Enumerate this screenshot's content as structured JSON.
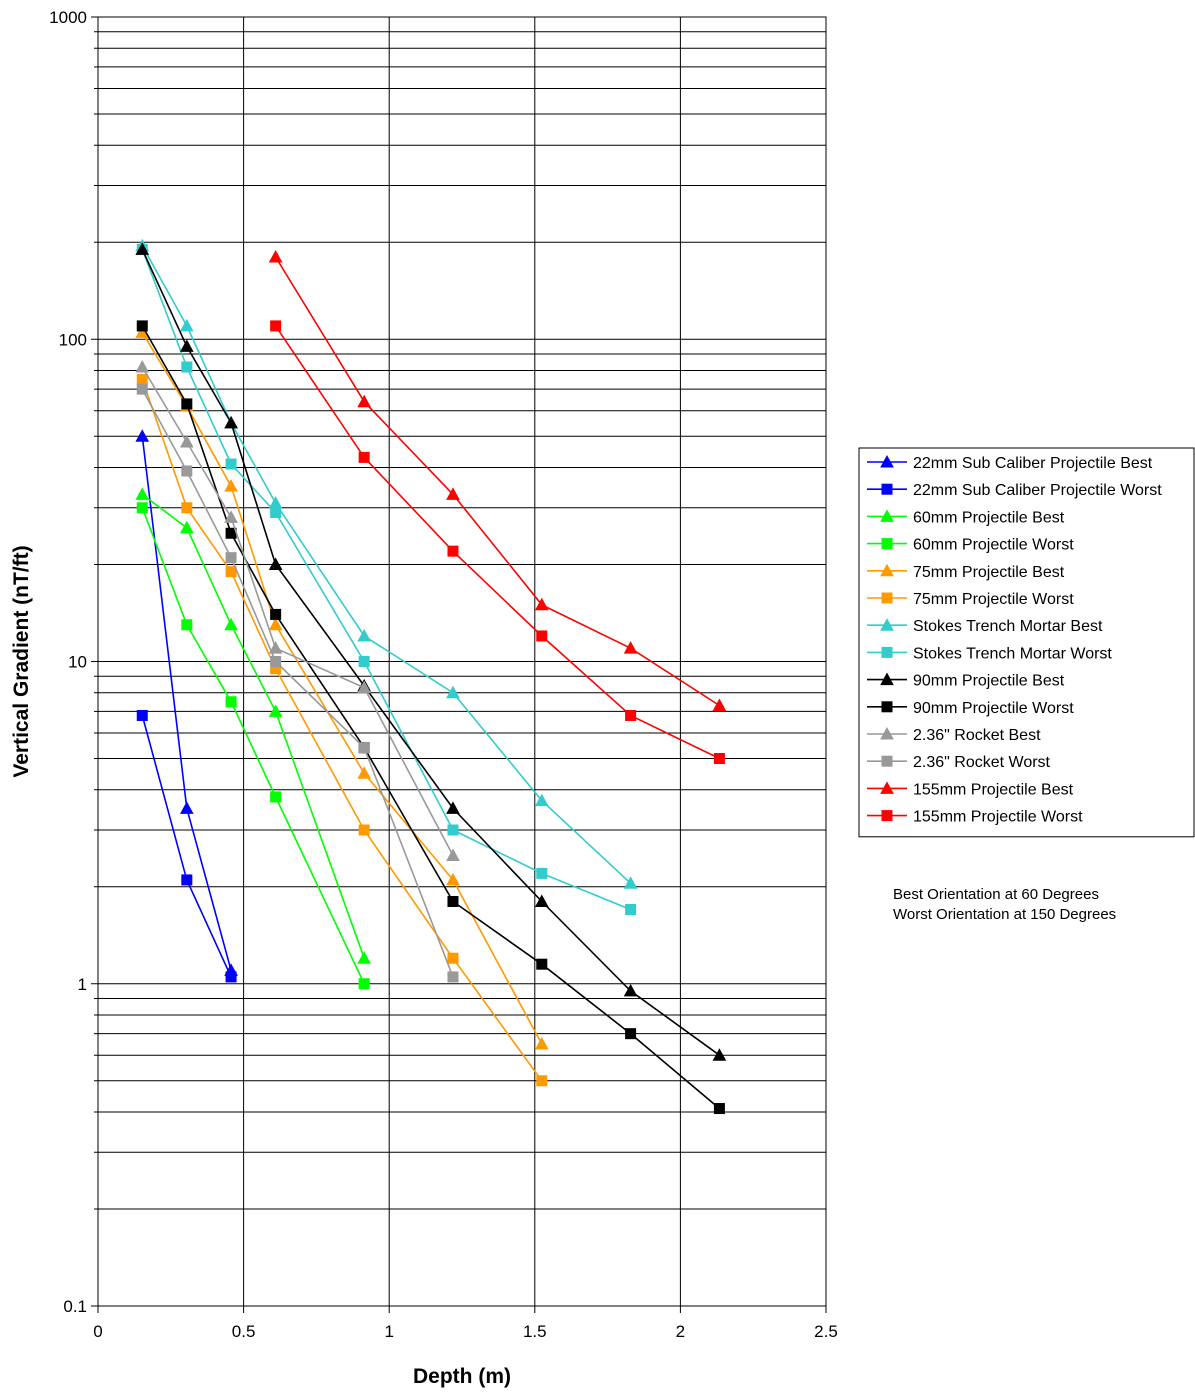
{
  "chart_data": {
    "type": "line",
    "xlabel": "Depth (m)",
    "ylabel": "Vertical Gradient (nT/ft)",
    "xlim": [
      0,
      2.5
    ],
    "ylim": [
      0.1,
      1000
    ],
    "yscale": "log",
    "xticks": [
      "0",
      "0.5",
      "1",
      "1.5",
      "2",
      "2.5"
    ],
    "yticks": [
      "0.1",
      "1",
      "10",
      "100",
      "1000"
    ],
    "grid": true,
    "legend_position": "right",
    "notes": [
      "Best Orientation at 60 Degrees",
      "Worst Orientation at 150 Degrees"
    ],
    "series": [
      {
        "name": "22mm Sub Caliber Projectile Best",
        "color": "#0000ff",
        "marker": "triangle",
        "x": [
          0.152,
          0.305,
          0.457
        ],
        "y": [
          50,
          3.5,
          1.1
        ]
      },
      {
        "name": "22mm Sub Caliber Projectile Worst",
        "color": "#0000ff",
        "marker": "square",
        "x": [
          0.152,
          0.305,
          0.457
        ],
        "y": [
          6.8,
          2.1,
          1.05
        ]
      },
      {
        "name": "60mm Projectile Best",
        "color": "#00ff00",
        "marker": "triangle",
        "x": [
          0.152,
          0.305,
          0.457,
          0.61,
          0.914
        ],
        "y": [
          33,
          26,
          13,
          7,
          1.2
        ]
      },
      {
        "name": "60mm Projectile Worst",
        "color": "#00ff00",
        "marker": "square",
        "x": [
          0.152,
          0.305,
          0.457,
          0.61,
          0.914
        ],
        "y": [
          30,
          13,
          7.5,
          3.8,
          1.0
        ]
      },
      {
        "name": "75mm Projectile Best",
        "color": "#ff9900",
        "marker": "triangle",
        "x": [
          0.152,
          0.305,
          0.457,
          0.61,
          0.914,
          1.219,
          1.524
        ],
        "y": [
          105,
          62,
          35,
          13,
          4.5,
          2.1,
          0.65
        ]
      },
      {
        "name": "75mm Projectile Worst",
        "color": "#ff9900",
        "marker": "square",
        "x": [
          0.152,
          0.305,
          0.457,
          0.61,
          0.914,
          1.219,
          1.524
        ],
        "y": [
          75,
          30,
          19,
          9.5,
          3.0,
          1.2,
          0.5
        ]
      },
      {
        "name": "Stokes Trench Mortar Best",
        "color": "#33cccc",
        "marker": "triangle",
        "x": [
          0.152,
          0.305,
          0.457,
          0.61,
          0.914,
          1.219,
          1.524,
          1.829
        ],
        "y": [
          195,
          110,
          55,
          31,
          12,
          8,
          3.7,
          2.05
        ]
      },
      {
        "name": "Stokes Trench Mortar Worst",
        "color": "#33cccc",
        "marker": "square",
        "x": [
          0.152,
          0.305,
          0.457,
          0.61,
          0.914,
          1.219,
          1.524,
          1.829
        ],
        "y": [
          190,
          82,
          41,
          29,
          10,
          3.0,
          2.2,
          1.7
        ]
      },
      {
        "name": "90mm Projectile Best",
        "color": "#000000",
        "marker": "triangle",
        "x": [
          0.152,
          0.305,
          0.457,
          0.61,
          0.914,
          1.219,
          1.524,
          1.829,
          2.134
        ],
        "y": [
          190,
          95,
          55,
          20,
          8.4,
          3.5,
          1.8,
          0.95,
          0.6
        ]
      },
      {
        "name": "90mm Projectile Worst",
        "color": "#000000",
        "marker": "square",
        "x": [
          0.152,
          0.305,
          0.457,
          0.61,
          0.914,
          1.219,
          1.524,
          1.829,
          2.134
        ],
        "y": [
          110,
          63,
          25,
          14,
          5.4,
          1.8,
          1.15,
          0.7,
          0.41
        ]
      },
      {
        "name": "2.36\" Rocket Best",
        "color": "#999999",
        "marker": "triangle",
        "x": [
          0.152,
          0.305,
          0.457,
          0.61,
          0.914,
          1.219
        ],
        "y": [
          82,
          48,
          28,
          11,
          8.3,
          2.5
        ]
      },
      {
        "name": "2.36\" Rocket Worst",
        "color": "#999999",
        "marker": "square",
        "x": [
          0.152,
          0.305,
          0.457,
          0.61,
          0.914,
          1.219
        ],
        "y": [
          70,
          39,
          21,
          10,
          5.4,
          1.05
        ]
      },
      {
        "name": "155mm Projectile Best",
        "color": "#ff0000",
        "marker": "triangle",
        "x": [
          0.61,
          0.914,
          1.219,
          1.524,
          1.829,
          2.134
        ],
        "y": [
          180,
          64,
          33,
          15,
          11,
          7.3
        ]
      },
      {
        "name": "155mm Projectile Worst",
        "color": "#ff0000",
        "marker": "square",
        "x": [
          0.61,
          0.914,
          1.219,
          1.524,
          1.829,
          2.134
        ],
        "y": [
          110,
          43,
          22,
          12,
          6.8,
          5.0
        ]
      }
    ]
  }
}
